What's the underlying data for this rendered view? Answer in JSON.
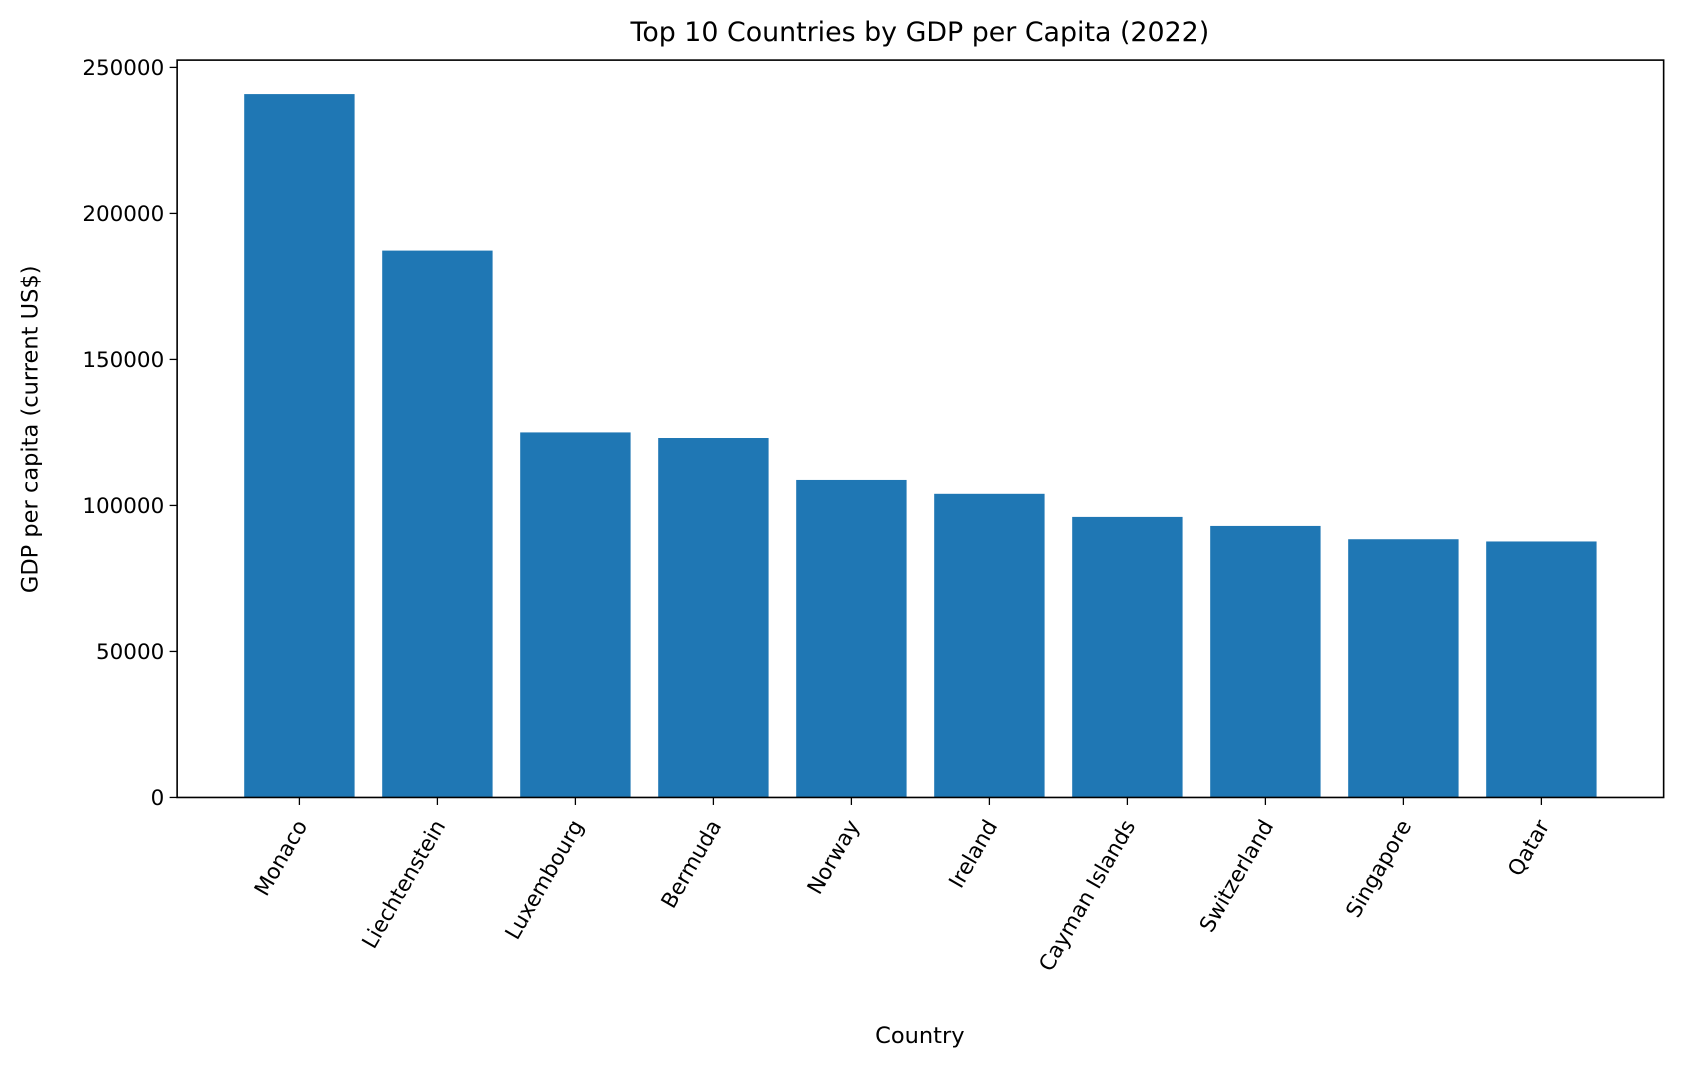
{
  "chart_data": {
    "type": "bar",
    "title": "Top 10 Countries by GDP per Capita (2022)",
    "xlabel": "Country",
    "ylabel": "GDP per capita (current US$)",
    "categories": [
      "Monaco",
      "Liechtenstein",
      "Luxembourg",
      "Bermuda",
      "Norway",
      "Ireland",
      "Cayman Islands",
      "Switzerland",
      "Singapore",
      "Qatar"
    ],
    "values": [
      240862,
      187267,
      125006,
      123091,
      108729,
      103983,
      96071,
      92980,
      88429,
      87661
    ],
    "ylim": [
      0,
      252500
    ],
    "yticks": [
      0,
      50000,
      100000,
      150000,
      200000,
      250000
    ],
    "ytick_labels": [
      "0",
      "50000",
      "100000",
      "150000",
      "200000",
      "250000"
    ],
    "grid": false,
    "bar_color": "#1f77b4"
  }
}
